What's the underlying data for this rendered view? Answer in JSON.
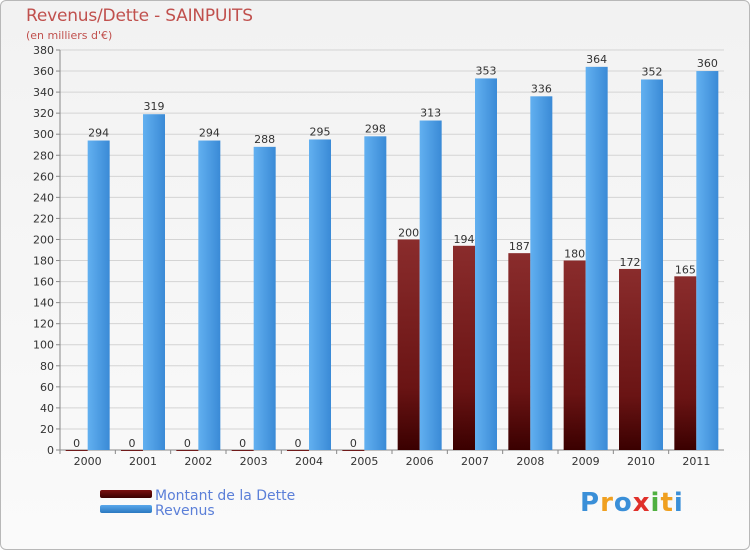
{
  "header": {
    "title": "Revenus/Dette - SAINPUITS",
    "subtitle": "(en milliers d'€)"
  },
  "legend": {
    "items": [
      {
        "label": "Montant de la Dette",
        "color": "#6b0a0a"
      },
      {
        "label": "Revenus",
        "color": "#3f8fd8"
      }
    ]
  },
  "logo": {
    "letters": [
      "P",
      "r",
      "o",
      "x",
      "i",
      "t",
      "i"
    ]
  },
  "chart_data": {
    "type": "bar",
    "categories": [
      "2000",
      "2001",
      "2002",
      "2003",
      "2004",
      "2005",
      "2006",
      "2007",
      "2008",
      "2009",
      "2010",
      "2011"
    ],
    "series": [
      {
        "name": "Montant de la Dette",
        "values": [
          0,
          0,
          0,
          0,
          0,
          0,
          200,
          194,
          187,
          180,
          172,
          165
        ],
        "color": "#7a2424"
      },
      {
        "name": "Revenus",
        "values": [
          294,
          319,
          294,
          288,
          295,
          298,
          313,
          353,
          336,
          364,
          352,
          360
        ],
        "color": "#3f8fd8"
      }
    ],
    "ylim": [
      0,
      380
    ],
    "ytick_step": 20,
    "grid": true,
    "legend_position": "bottom-left"
  }
}
